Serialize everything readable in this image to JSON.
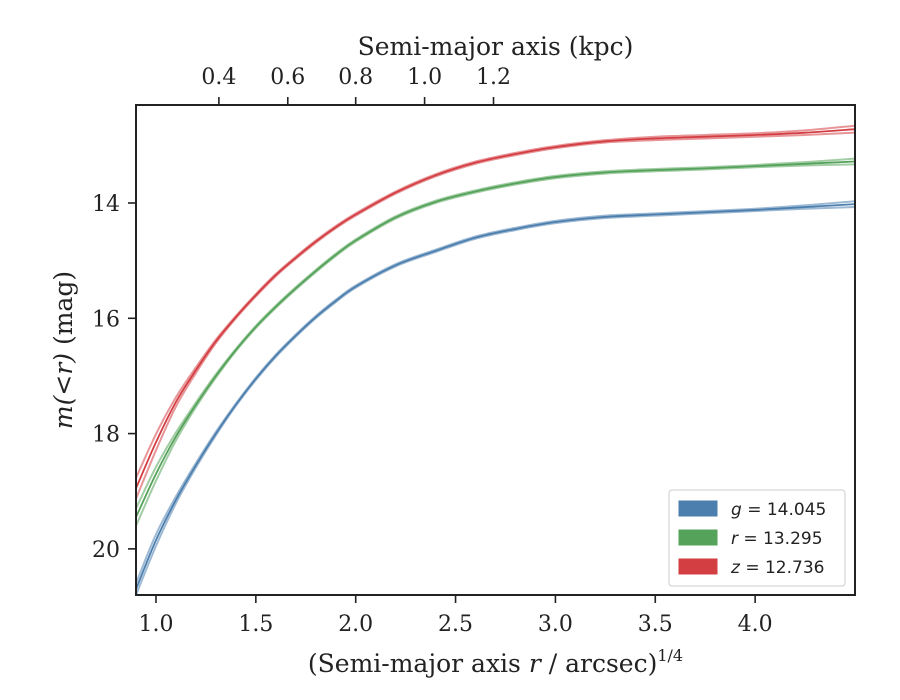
{
  "chart_data": {
    "type": "line",
    "x_axis": {
      "label_text": "(Semi-major axis ",
      "label_var": "r",
      "label_unit": " / arcsec)",
      "label_exp": "1/4",
      "range": [
        0.9,
        4.5
      ],
      "ticks": [
        1.0,
        1.5,
        2.0,
        2.5,
        3.0,
        3.5,
        4.0
      ],
      "tick_labels": [
        "1.0",
        "1.5",
        "2.0",
        "2.5",
        "3.0",
        "3.5",
        "4.0"
      ]
    },
    "x_top_axis": {
      "label": "Semi-major axis (kpc)",
      "tick_positions_bottom_units": [
        1.315,
        1.66,
        2.0,
        2.345,
        2.69
      ],
      "tick_labels": [
        "0.4",
        "0.6",
        "0.8",
        "1.0",
        "1.2"
      ]
    },
    "y_axis": {
      "label_var": "m(<r)",
      "label_unit": " (mag)",
      "range": [
        20.8,
        12.3
      ],
      "inverted": true,
      "ticks": [
        14,
        16,
        18,
        20
      ],
      "tick_labels": [
        "14",
        "16",
        "18",
        "20"
      ]
    },
    "grid": false,
    "legend_position": "bottom-right",
    "series": [
      {
        "name": "g = 14.045",
        "legend_var": "g",
        "legend_value": "14.045",
        "color": "#4c7fae",
        "x": [
          0.9,
          1.0,
          1.1,
          1.2,
          1.3,
          1.4,
          1.5,
          1.6,
          1.7,
          1.8,
          1.9,
          2.0,
          2.2,
          2.4,
          2.6,
          2.8,
          3.0,
          3.25,
          3.5,
          3.75,
          4.0,
          4.25,
          4.5
        ],
        "y": [
          20.7,
          19.85,
          19.15,
          18.55,
          18.0,
          17.5,
          17.05,
          16.65,
          16.3,
          15.98,
          15.7,
          15.45,
          15.08,
          14.83,
          14.6,
          14.45,
          14.33,
          14.24,
          14.2,
          14.16,
          14.12,
          14.07,
          14.02
        ],
        "band": [
          0.1,
          0.1,
          0.06,
          0.04,
          0.03,
          0.02,
          0.02,
          0.02,
          0.02,
          0.02,
          0.02,
          0.02,
          0.02,
          0.02,
          0.02,
          0.02,
          0.02,
          0.02,
          0.02,
          0.02,
          0.02,
          0.03,
          0.05
        ]
      },
      {
        "name": "r = 13.295",
        "legend_var": "r",
        "legend_value": "13.295",
        "color": "#55a35a",
        "x": [
          0.9,
          1.0,
          1.1,
          1.2,
          1.3,
          1.4,
          1.5,
          1.6,
          1.7,
          1.8,
          1.9,
          2.0,
          2.2,
          2.4,
          2.6,
          2.8,
          3.0,
          3.25,
          3.5,
          3.75,
          4.0,
          4.25,
          4.5
        ],
        "y": [
          19.45,
          18.7,
          18.05,
          17.5,
          17.0,
          16.55,
          16.15,
          15.8,
          15.48,
          15.18,
          14.9,
          14.65,
          14.25,
          13.98,
          13.8,
          13.66,
          13.55,
          13.47,
          13.43,
          13.4,
          13.36,
          13.32,
          13.28
        ],
        "band": [
          0.15,
          0.12,
          0.07,
          0.04,
          0.03,
          0.02,
          0.02,
          0.02,
          0.02,
          0.02,
          0.02,
          0.02,
          0.02,
          0.02,
          0.02,
          0.02,
          0.02,
          0.02,
          0.02,
          0.02,
          0.02,
          0.03,
          0.05
        ]
      },
      {
        "name": "z = 12.736",
        "legend_var": "z",
        "legend_value": "12.736",
        "color": "#d33e43",
        "x": [
          0.9,
          1.0,
          1.1,
          1.2,
          1.3,
          1.4,
          1.5,
          1.6,
          1.7,
          1.8,
          1.9,
          2.0,
          2.2,
          2.4,
          2.6,
          2.8,
          3.0,
          3.25,
          3.5,
          3.75,
          4.0,
          4.25,
          4.5
        ],
        "y": [
          18.95,
          18.15,
          17.45,
          16.9,
          16.4,
          15.98,
          15.6,
          15.25,
          14.95,
          14.67,
          14.42,
          14.2,
          13.82,
          13.52,
          13.3,
          13.15,
          13.03,
          12.93,
          12.88,
          12.85,
          12.82,
          12.78,
          12.72
        ],
        "band": [
          0.18,
          0.14,
          0.08,
          0.05,
          0.03,
          0.02,
          0.02,
          0.02,
          0.02,
          0.02,
          0.02,
          0.02,
          0.02,
          0.02,
          0.02,
          0.02,
          0.02,
          0.02,
          0.03,
          0.03,
          0.03,
          0.04,
          0.06
        ]
      }
    ]
  }
}
